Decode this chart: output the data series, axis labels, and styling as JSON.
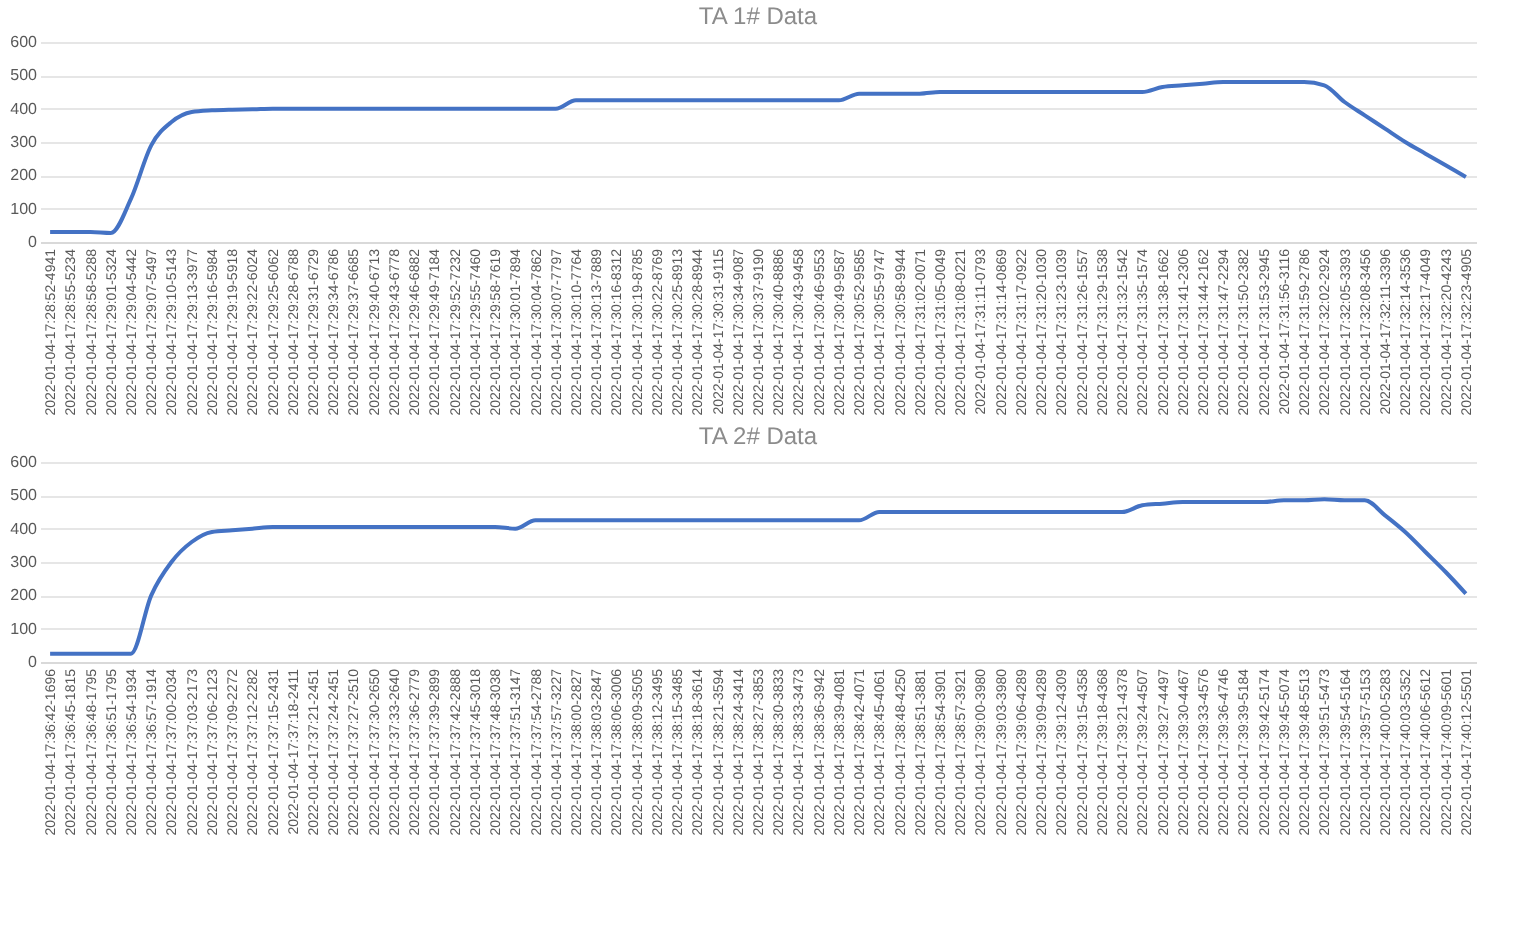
{
  "chart_data": [
    {
      "type": "line",
      "title": "TA 1# Data",
      "color": "#4472c4",
      "ylim": [
        0,
        600
      ],
      "yticks": [
        0,
        100,
        200,
        300,
        400,
        500,
        600
      ],
      "grid": "y",
      "categories": [
        "2022-01-04-17:28:52-4941",
        "2022-01-04-17:28:55-5234",
        "2022-01-04-17:28:58-5288",
        "2022-01-04-17:29:01-5324",
        "2022-01-04-17:29:04-5442",
        "2022-01-04-17:29:07-5497",
        "2022-01-04-17:29:10-5143",
        "2022-01-04-17:29:13-3977",
        "2022-01-04-17:29:16-5984",
        "2022-01-04-17:29:19-5918",
        "2022-01-04-17:29:22-6024",
        "2022-01-04-17:29:25-6062",
        "2022-01-04-17:29:28-6788",
        "2022-01-04-17:29:31-6729",
        "2022-01-04-17:29:34-6786",
        "2022-01-04-17:29:37-6685",
        "2022-01-04-17:29:40-6713",
        "2022-01-04-17:29:43-6778",
        "2022-01-04-17:29:46-6882",
        "2022-01-04-17:29:49-7184",
        "2022-01-04-17:29:52-7232",
        "2022-01-04-17:29:55-7460",
        "2022-01-04-17:29:58-7619",
        "2022-01-04-17:30:01-7894",
        "2022-01-04-17:30:04-7862",
        "2022-01-04-17:30:07-7797",
        "2022-01-04-17:30:10-7764",
        "2022-01-04-17:30:13-7889",
        "2022-01-04-17:30:16-8312",
        "2022-01-04-17:30:19-8785",
        "2022-01-04-17:30:22-8769",
        "2022-01-04-17:30:25-8913",
        "2022-01-04-17:30:28-8944",
        "2022-01-04-17:30:31-9115",
        "2022-01-04-17:30:34-9087",
        "2022-01-04-17:30:37-9190",
        "2022-01-04-17:30:40-8886",
        "2022-01-04-17:30:43-9458",
        "2022-01-04-17:30:46-9553",
        "2022-01-04-17:30:49-9587",
        "2022-01-04-17:30:52-9585",
        "2022-01-04-17:30:55-9747",
        "2022-01-04-17:30:58-9944",
        "2022-01-04-17:31:02-0071",
        "2022-01-04-17:31:05-0049",
        "2022-01-04-17:31:08-0221",
        "2022-01-04-17:31:11-0793",
        "2022-01-04-17:31:14-0869",
        "2022-01-04-17:31:17-0922",
        "2022-01-04-17:31:20-1030",
        "2022-01-04-17:31:23-1039",
        "2022-01-04-17:31:26-1557",
        "2022-01-04-17:31:29-1538",
        "2022-01-04-17:31:32-1542",
        "2022-01-04-17:31:35-1574",
        "2022-01-04-17:31:38-1662",
        "2022-01-04-17:31:41-2306",
        "2022-01-04-17:31:44-2162",
        "2022-01-04-17:31:47-2294",
        "2022-01-04-17:31:50-2382",
        "2022-01-04-17:31:53-2945",
        "2022-01-04-17:31:56-3116",
        "2022-01-04-17:31:59-2786",
        "2022-01-04-17:32:02-2924",
        "2022-01-04-17:32:05-3393",
        "2022-01-04-17:32:08-3456",
        "2022-01-04-17:32:11-3396",
        "2022-01-04-17:32:14-3536",
        "2022-01-04-17:32:17-4049",
        "2022-01-04-17:32:20-4243",
        "2022-01-04-17:32:23-4905"
      ],
      "values": [
        30,
        30,
        30,
        27,
        130,
        290,
        360,
        390,
        395,
        397,
        398,
        400,
        400,
        400,
        400,
        400,
        400,
        400,
        400,
        400,
        400,
        400,
        400,
        400,
        400,
        400,
        425,
        425,
        425,
        425,
        425,
        425,
        425,
        425,
        425,
        425,
        425,
        425,
        425,
        425,
        445,
        445,
        445,
        445,
        450,
        450,
        450,
        450,
        450,
        450,
        450,
        450,
        450,
        450,
        450,
        465,
        470,
        475,
        480,
        480,
        480,
        480,
        480,
        470,
        420,
        380,
        340,
        300,
        265,
        230,
        195
      ]
    },
    {
      "type": "line",
      "title": "TA 2# Data",
      "color": "#4472c4",
      "ylim": [
        0,
        600
      ],
      "yticks": [
        0,
        100,
        200,
        300,
        400,
        500,
        600
      ],
      "grid": "y",
      "categories": [
        "2022-01-04-17:36:42-1696",
        "2022-01-04-17:36:45-1815",
        "2022-01-04-17:36:48-1795",
        "2022-01-04-17:36:51-1795",
        "2022-01-04-17:36:54-1934",
        "2022-01-04-17:36:57-1914",
        "2022-01-04-17:37:00-2034",
        "2022-01-04-17:37:03-2173",
        "2022-01-04-17:37:06-2123",
        "2022-01-04-17:37:09-2272",
        "2022-01-04-17:37:12-2282",
        "2022-01-04-17:37:15-2431",
        "2022-01-04-17:37:18-2411",
        "2022-01-04-17:37:21-2451",
        "2022-01-04-17:37:24-2451",
        "2022-01-04-17:37:27-2510",
        "2022-01-04-17:37:30-2650",
        "2022-01-04-17:37:33-2640",
        "2022-01-04-17:37:36-2779",
        "2022-01-04-17:37:39-2899",
        "2022-01-04-17:37:42-2888",
        "2022-01-04-17:37:45-3018",
        "2022-01-04-17:37:48-3038",
        "2022-01-04-17:37:51-3147",
        "2022-01-04-17:37:54-2788",
        "2022-01-04-17:37:57-3227",
        "2022-01-04-17:38:00-2827",
        "2022-01-04-17:38:03-2847",
        "2022-01-04-17:38:06-3006",
        "2022-01-04-17:38:09-3505",
        "2022-01-04-17:38:12-3495",
        "2022-01-04-17:38:15-3485",
        "2022-01-04-17:38:18-3614",
        "2022-01-04-17:38:21-3594",
        "2022-01-04-17:38:24-3414",
        "2022-01-04-17:38:27-3853",
        "2022-01-04-17:38:30-3833",
        "2022-01-04-17:38:33-3473",
        "2022-01-04-17:38:36-3942",
        "2022-01-04-17:38:39-4081",
        "2022-01-04-17:38:42-4071",
        "2022-01-04-17:38:45-4061",
        "2022-01-04-17:38:48-4250",
        "2022-01-04-17:38:51-3881",
        "2022-01-04-17:38:54-3901",
        "2022-01-04-17:38:57-3921",
        "2022-01-04-17:39:00-3980",
        "2022-01-04-17:39:03-3980",
        "2022-01-04-17:39:06-4289",
        "2022-01-04-17:39:09-4289",
        "2022-01-04-17:39:12-4309",
        "2022-01-04-17:39:15-4358",
        "2022-01-04-17:39:18-4368",
        "2022-01-04-17:39:21-4378",
        "2022-01-04-17:39:24-4507",
        "2022-01-04-17:39:27-4497",
        "2022-01-04-17:39:30-4467",
        "2022-01-04-17:39:33-4576",
        "2022-01-04-17:39:36-4746",
        "2022-01-04-17:39:39-5184",
        "2022-01-04-17:39:42-5174",
        "2022-01-04-17:39:45-5074",
        "2022-01-04-17:39:48-5513",
        "2022-01-04-17:39:51-5473",
        "2022-01-04-17:39:54-5164",
        "2022-01-04-17:39:57-5153",
        "2022-01-04-17:40:00-5283",
        "2022-01-04-17:40:03-5352",
        "2022-01-04-17:40:06-5612",
        "2022-01-04-17:40:09-5601",
        "2022-01-04-17:40:12-5501"
      ],
      "values": [
        25,
        25,
        25,
        25,
        25,
        200,
        300,
        360,
        390,
        395,
        400,
        405,
        405,
        405,
        405,
        405,
        405,
        405,
        405,
        405,
        405,
        405,
        405,
        400,
        425,
        425,
        425,
        425,
        425,
        425,
        425,
        425,
        425,
        425,
        425,
        425,
        425,
        425,
        425,
        425,
        425,
        450,
        450,
        450,
        450,
        450,
        450,
        450,
        450,
        450,
        450,
        450,
        450,
        450,
        470,
        475,
        480,
        480,
        480,
        480,
        480,
        485,
        485,
        488,
        485,
        485,
        440,
        390,
        330,
        270,
        205
      ]
    }
  ]
}
